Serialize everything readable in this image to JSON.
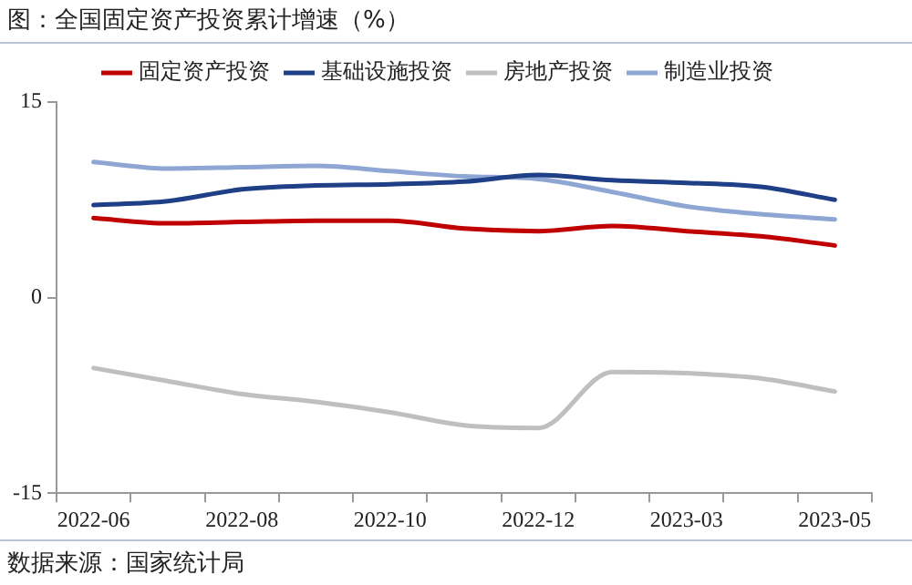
{
  "chart_data": {
    "type": "line",
    "title": "图：全国固定资产投资累计增速（%）",
    "annotations": [
      "数据来源：国家统计局"
    ],
    "categories": [
      "2022-06",
      null,
      "2022-08",
      null,
      "2022-10",
      null,
      "2022-12",
      null,
      "2023-03",
      null,
      "2023-05"
    ],
    "series": [
      {
        "name": "固定资产投资",
        "color": "#c00000",
        "values": [
          6.1,
          5.7,
          5.8,
          5.9,
          5.9,
          5.3,
          5.1,
          5.5,
          5.1,
          4.7,
          4.0
        ]
      },
      {
        "name": "基础设施投资",
        "color": "#1f3f86",
        "values": [
          7.1,
          7.4,
          8.3,
          8.6,
          8.7,
          8.9,
          9.4,
          9.0,
          8.8,
          8.5,
          7.5
        ]
      },
      {
        "name": "房地产投资",
        "color": "#bfbfbf",
        "values": [
          -5.4,
          -6.4,
          -7.4,
          -8.0,
          -8.8,
          -9.8,
          -10.0,
          -5.7,
          -5.8,
          -6.2,
          -7.2
        ]
      },
      {
        "name": "制造业投资",
        "color": "#8ea6d4",
        "values": [
          10.4,
          9.9,
          10.0,
          10.1,
          9.7,
          9.3,
          9.1,
          8.1,
          7.0,
          6.4,
          6.0
        ]
      }
    ],
    "ylim": [
      -15,
      15
    ],
    "yticks": [
      -15,
      0,
      15
    ],
    "grid": false,
    "legend": "top",
    "marker": "none",
    "line_style": "solid"
  }
}
